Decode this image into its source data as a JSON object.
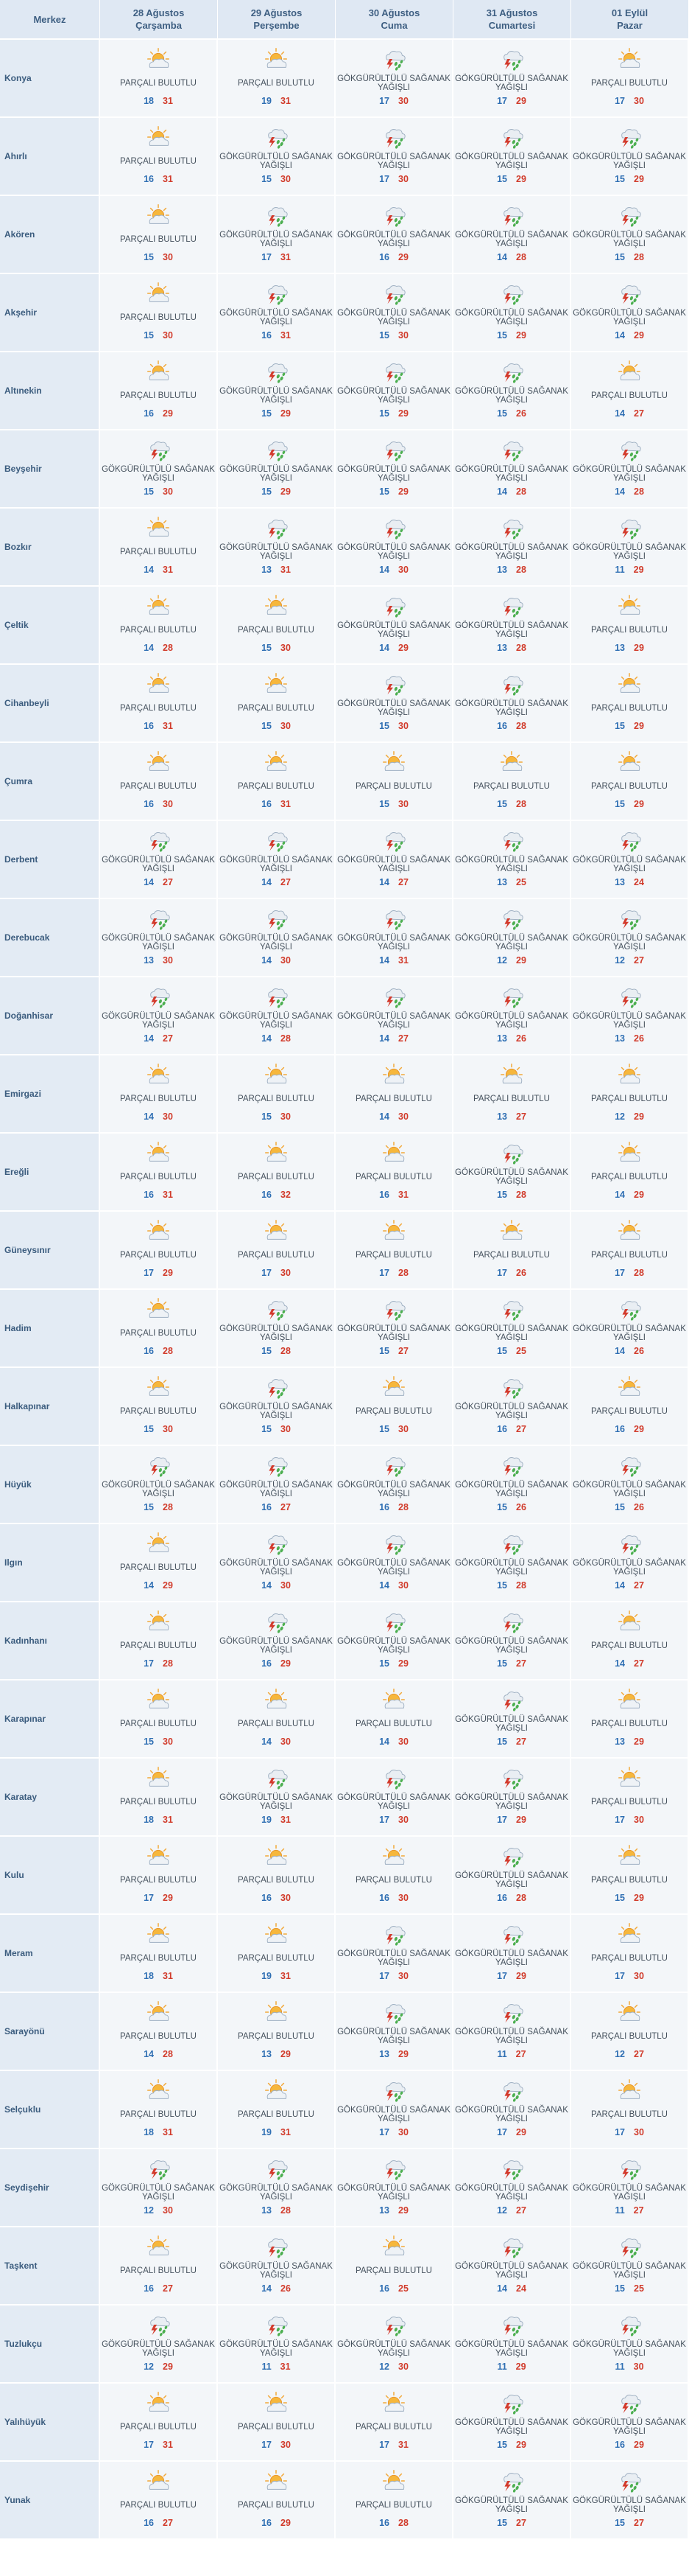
{
  "header": {
    "location_col": "Merkez",
    "days": [
      {
        "date": "28 Ağustos",
        "weekday": "Çarşamba"
      },
      {
        "date": "29 Ağustos",
        "weekday": "Perşembe"
      },
      {
        "date": "30 Ağustos",
        "weekday": "Cuma"
      },
      {
        "date": "31 Ağustos",
        "weekday": "Cumartesi"
      },
      {
        "date": "01 Eylül",
        "weekday": "Pazar"
      }
    ]
  },
  "conditions": {
    "pb": {
      "label": "PARÇALI BULUTLU",
      "icon": "partly-cloudy-icon"
    },
    "gs": {
      "label": "GÖKGÜRÜLTÜLÜ SAĞANAK YAĞIŞLI",
      "icon": "thunderstorm-icon"
    }
  },
  "colors": {
    "min": "#2f6fb3",
    "max": "#d13b2b",
    "header_bg": "#dfe8f3",
    "row_bg": "#f3f6f9"
  },
  "rows": [
    {
      "name": "Konya",
      "days": [
        [
          "pb",
          18,
          31
        ],
        [
          "pb",
          19,
          31
        ],
        [
          "gs",
          17,
          30
        ],
        [
          "gs",
          17,
          29
        ],
        [
          "pb",
          17,
          30
        ]
      ]
    },
    {
      "name": "Ahırlı",
      "days": [
        [
          "pb",
          16,
          31
        ],
        [
          "gs",
          15,
          30
        ],
        [
          "gs",
          17,
          30
        ],
        [
          "gs",
          15,
          29
        ],
        [
          "gs",
          15,
          29
        ]
      ]
    },
    {
      "name": "Akören",
      "days": [
        [
          "pb",
          15,
          30
        ],
        [
          "gs",
          17,
          31
        ],
        [
          "gs",
          16,
          29
        ],
        [
          "gs",
          14,
          28
        ],
        [
          "gs",
          15,
          28
        ]
      ]
    },
    {
      "name": "Akşehir",
      "days": [
        [
          "pb",
          15,
          30
        ],
        [
          "gs",
          16,
          31
        ],
        [
          "gs",
          15,
          30
        ],
        [
          "gs",
          15,
          29
        ],
        [
          "gs",
          14,
          29
        ]
      ]
    },
    {
      "name": "Altınekin",
      "days": [
        [
          "pb",
          16,
          29
        ],
        [
          "gs",
          15,
          29
        ],
        [
          "gs",
          15,
          29
        ],
        [
          "gs",
          15,
          26
        ],
        [
          "pb",
          14,
          27
        ]
      ]
    },
    {
      "name": "Beyşehir",
      "days": [
        [
          "gs",
          15,
          30
        ],
        [
          "gs",
          15,
          29
        ],
        [
          "gs",
          15,
          29
        ],
        [
          "gs",
          14,
          28
        ],
        [
          "gs",
          14,
          28
        ]
      ]
    },
    {
      "name": "Bozkır",
      "days": [
        [
          "pb",
          14,
          31
        ],
        [
          "gs",
          13,
          31
        ],
        [
          "gs",
          14,
          30
        ],
        [
          "gs",
          13,
          28
        ],
        [
          "gs",
          11,
          29
        ]
      ]
    },
    {
      "name": "Çeltik",
      "days": [
        [
          "pb",
          14,
          28
        ],
        [
          "pb",
          15,
          30
        ],
        [
          "gs",
          14,
          29
        ],
        [
          "gs",
          13,
          28
        ],
        [
          "pb",
          13,
          29
        ]
      ]
    },
    {
      "name": "Cihanbeyli",
      "days": [
        [
          "pb",
          16,
          31
        ],
        [
          "pb",
          15,
          30
        ],
        [
          "gs",
          15,
          30
        ],
        [
          "gs",
          16,
          28
        ],
        [
          "pb",
          15,
          29
        ]
      ]
    },
    {
      "name": "Çumra",
      "days": [
        [
          "pb",
          16,
          30
        ],
        [
          "pb",
          16,
          31
        ],
        [
          "pb",
          15,
          30
        ],
        [
          "pb",
          15,
          28
        ],
        [
          "pb",
          15,
          29
        ]
      ]
    },
    {
      "name": "Derbent",
      "days": [
        [
          "gs",
          14,
          27
        ],
        [
          "gs",
          14,
          27
        ],
        [
          "gs",
          14,
          27
        ],
        [
          "gs",
          13,
          25
        ],
        [
          "gs",
          13,
          24
        ]
      ]
    },
    {
      "name": "Derebucak",
      "days": [
        [
          "gs",
          13,
          30
        ],
        [
          "gs",
          14,
          30
        ],
        [
          "gs",
          14,
          31
        ],
        [
          "gs",
          12,
          29
        ],
        [
          "gs",
          12,
          27
        ]
      ]
    },
    {
      "name": "Doğanhisar",
      "days": [
        [
          "gs",
          14,
          27
        ],
        [
          "gs",
          14,
          28
        ],
        [
          "gs",
          14,
          27
        ],
        [
          "gs",
          13,
          26
        ],
        [
          "gs",
          13,
          26
        ]
      ]
    },
    {
      "name": "Emirgazi",
      "days": [
        [
          "pb",
          14,
          30
        ],
        [
          "pb",
          15,
          30
        ],
        [
          "pb",
          14,
          30
        ],
        [
          "pb",
          13,
          27
        ],
        [
          "pb",
          12,
          29
        ]
      ]
    },
    {
      "name": "Ereğli",
      "days": [
        [
          "pb",
          16,
          31
        ],
        [
          "pb",
          16,
          32
        ],
        [
          "pb",
          16,
          31
        ],
        [
          "gs",
          15,
          28
        ],
        [
          "pb",
          14,
          29
        ]
      ]
    },
    {
      "name": "Güneysınır",
      "days": [
        [
          "pb",
          17,
          29
        ],
        [
          "pb",
          17,
          30
        ],
        [
          "pb",
          17,
          28
        ],
        [
          "pb",
          17,
          26
        ],
        [
          "pb",
          17,
          28
        ]
      ]
    },
    {
      "name": "Hadim",
      "days": [
        [
          "pb",
          16,
          28
        ],
        [
          "gs",
          15,
          28
        ],
        [
          "gs",
          15,
          27
        ],
        [
          "gs",
          15,
          25
        ],
        [
          "gs",
          14,
          26
        ]
      ]
    },
    {
      "name": "Halkapınar",
      "days": [
        [
          "pb",
          15,
          30
        ],
        [
          "gs",
          15,
          30
        ],
        [
          "pb",
          15,
          30
        ],
        [
          "gs",
          16,
          27
        ],
        [
          "pb",
          16,
          29
        ]
      ]
    },
    {
      "name": "Hüyük",
      "days": [
        [
          "gs",
          15,
          28
        ],
        [
          "gs",
          16,
          27
        ],
        [
          "gs",
          16,
          28
        ],
        [
          "gs",
          15,
          26
        ],
        [
          "gs",
          15,
          26
        ]
      ]
    },
    {
      "name": "Ilgın",
      "days": [
        [
          "pb",
          14,
          29
        ],
        [
          "gs",
          14,
          30
        ],
        [
          "gs",
          14,
          30
        ],
        [
          "gs",
          15,
          28
        ],
        [
          "gs",
          14,
          27
        ]
      ]
    },
    {
      "name": "Kadınhanı",
      "days": [
        [
          "pb",
          17,
          28
        ],
        [
          "gs",
          16,
          29
        ],
        [
          "gs",
          15,
          29
        ],
        [
          "gs",
          15,
          27
        ],
        [
          "pb",
          14,
          27
        ]
      ]
    },
    {
      "name": "Karapınar",
      "days": [
        [
          "pb",
          15,
          30
        ],
        [
          "pb",
          14,
          30
        ],
        [
          "pb",
          14,
          30
        ],
        [
          "gs",
          15,
          27
        ],
        [
          "pb",
          13,
          29
        ]
      ]
    },
    {
      "name": "Karatay",
      "days": [
        [
          "pb",
          18,
          31
        ],
        [
          "gs",
          19,
          31
        ],
        [
          "gs",
          17,
          30
        ],
        [
          "gs",
          17,
          29
        ],
        [
          "pb",
          17,
          30
        ]
      ]
    },
    {
      "name": "Kulu",
      "days": [
        [
          "pb",
          17,
          29
        ],
        [
          "pb",
          16,
          30
        ],
        [
          "pb",
          16,
          30
        ],
        [
          "gs",
          16,
          28
        ],
        [
          "pb",
          15,
          29
        ]
      ]
    },
    {
      "name": "Meram",
      "days": [
        [
          "pb",
          18,
          31
        ],
        [
          "pb",
          19,
          31
        ],
        [
          "gs",
          17,
          30
        ],
        [
          "gs",
          17,
          29
        ],
        [
          "pb",
          17,
          30
        ]
      ]
    },
    {
      "name": "Sarayönü",
      "days": [
        [
          "pb",
          14,
          28
        ],
        [
          "pb",
          13,
          29
        ],
        [
          "gs",
          13,
          29
        ],
        [
          "gs",
          11,
          27
        ],
        [
          "pb",
          12,
          27
        ]
      ]
    },
    {
      "name": "Selçuklu",
      "days": [
        [
          "pb",
          18,
          31
        ],
        [
          "pb",
          19,
          31
        ],
        [
          "gs",
          17,
          30
        ],
        [
          "gs",
          17,
          29
        ],
        [
          "pb",
          17,
          30
        ]
      ]
    },
    {
      "name": "Seydişehir",
      "days": [
        [
          "gs",
          12,
          30
        ],
        [
          "gs",
          13,
          28
        ],
        [
          "gs",
          13,
          29
        ],
        [
          "gs",
          12,
          27
        ],
        [
          "gs",
          11,
          27
        ]
      ]
    },
    {
      "name": "Taşkent",
      "days": [
        [
          "pb",
          16,
          27
        ],
        [
          "gs",
          14,
          26
        ],
        [
          "pb",
          16,
          25
        ],
        [
          "gs",
          14,
          24
        ],
        [
          "gs",
          15,
          25
        ]
      ]
    },
    {
      "name": "Tuzlukçu",
      "days": [
        [
          "gs",
          12,
          29
        ],
        [
          "gs",
          11,
          31
        ],
        [
          "gs",
          12,
          30
        ],
        [
          "gs",
          11,
          29
        ],
        [
          "gs",
          11,
          30
        ]
      ]
    },
    {
      "name": "Yalıhüyük",
      "days": [
        [
          "pb",
          17,
          31
        ],
        [
          "pb",
          17,
          30
        ],
        [
          "pb",
          17,
          31
        ],
        [
          "gs",
          15,
          29
        ],
        [
          "gs",
          16,
          29
        ]
      ]
    },
    {
      "name": "Yunak",
      "days": [
        [
          "pb",
          16,
          27
        ],
        [
          "pb",
          16,
          29
        ],
        [
          "pb",
          16,
          28
        ],
        [
          "gs",
          15,
          27
        ],
        [
          "gs",
          15,
          27
        ]
      ]
    }
  ]
}
